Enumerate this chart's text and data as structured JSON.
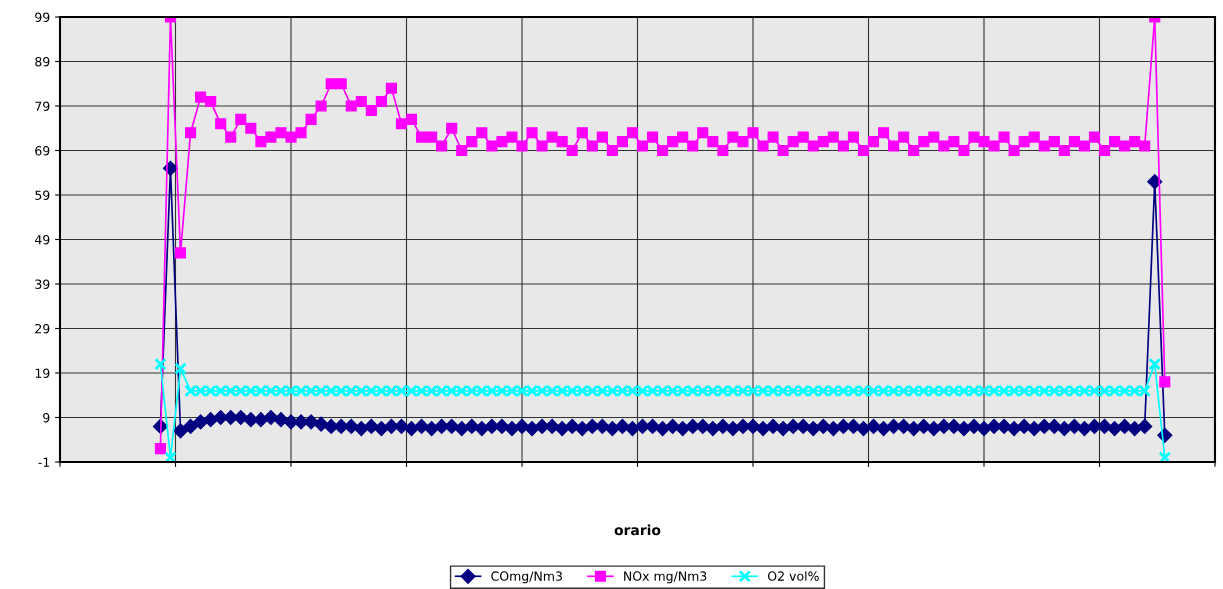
{
  "chart_data": {
    "type": "line",
    "xlabel": "orario",
    "categories": [
      null,
      null,
      null,
      null,
      null,
      null,
      null,
      null,
      null,
      null,
      null,
      null,
      null,
      null,
      null,
      null,
      null,
      null,
      null,
      null,
      null,
      null,
      null,
      null,
      null,
      null,
      null,
      null,
      null,
      null,
      null,
      null,
      null,
      null,
      null,
      null,
      null,
      null,
      null,
      null,
      null,
      null,
      null,
      null,
      null,
      null,
      null,
      null,
      null,
      null,
      null,
      null,
      null,
      null,
      null,
      null,
      null,
      null,
      null,
      null,
      null,
      null,
      null,
      null,
      null,
      null,
      null,
      null,
      null,
      null,
      null,
      null,
      null,
      null,
      null,
      null,
      null,
      null,
      null,
      null,
      null,
      null,
      null,
      null,
      null,
      null,
      null,
      null,
      null,
      null,
      null,
      null,
      null,
      null,
      null,
      null,
      null,
      null,
      null,
      null,
      null,
      null,
      null,
      null,
      null,
      null,
      null,
      null,
      null,
      null,
      null,
      null,
      null,
      null,
      null,
      null
    ],
    "series": [
      {
        "name": "COmg/Nm3",
        "color": "#000080",
        "marker": "diamond",
        "values": [
          null,
          null,
          null,
          null,
          null,
          null,
          null,
          null,
          null,
          null,
          7,
          65,
          6,
          7,
          8,
          8.5,
          9,
          9,
          9,
          8.5,
          8.5,
          9,
          8.5,
          8,
          8,
          8,
          7.5,
          7,
          7,
          7,
          6.5,
          7,
          6.5,
          7,
          7,
          6.5,
          7,
          6.5,
          7,
          7,
          6.5,
          7,
          6.5,
          7,
          7,
          6.5,
          7,
          6.5,
          7,
          7,
          6.5,
          7,
          6.5,
          7,
          7,
          6.5,
          7,
          6.5,
          7,
          7,
          6.5,
          7,
          6.5,
          7,
          7,
          6.5,
          7,
          6.5,
          7,
          7,
          6.5,
          7,
          6.5,
          7,
          7,
          6.5,
          7,
          6.5,
          7,
          7,
          6.5,
          7,
          6.5,
          7,
          7,
          6.5,
          7,
          6.5,
          7,
          7,
          6.5,
          7,
          6.5,
          7,
          7,
          6.5,
          7,
          6.5,
          7,
          7,
          6.5,
          7,
          6.5,
          7,
          7,
          6.5,
          7,
          6.5,
          7,
          62,
          5,
          null,
          null,
          null,
          null,
          null
        ]
      },
      {
        "name": "NOx mg/Nm3",
        "color": "#ff00ff",
        "marker": "square",
        "values": [
          null,
          null,
          null,
          null,
          null,
          null,
          null,
          null,
          null,
          null,
          2,
          99,
          46,
          73,
          81,
          80,
          75,
          72,
          76,
          74,
          71,
          72,
          73,
          72,
          73,
          76,
          79,
          84,
          84,
          79,
          80,
          78,
          80,
          83,
          75,
          76,
          72,
          72,
          70,
          74,
          69,
          71,
          73,
          70,
          71,
          72,
          70,
          73,
          70,
          72,
          71,
          69,
          73,
          70,
          72,
          69,
          71,
          73,
          70,
          72,
          69,
          71,
          72,
          70,
          73,
          71,
          69,
          72,
          71,
          73,
          70,
          72,
          69,
          71,
          72,
          70,
          71,
          72,
          70,
          72,
          69,
          71,
          73,
          70,
          72,
          69,
          71,
          72,
          70,
          71,
          69,
          72,
          71,
          70,
          72,
          69,
          71,
          72,
          70,
          71,
          69,
          71,
          70,
          72,
          69,
          71,
          70,
          71,
          70,
          99,
          17,
          null,
          null,
          null,
          null,
          null
        ]
      },
      {
        "name": "O2 vol%",
        "color": "#00ffff",
        "marker": "cross",
        "values": [
          null,
          null,
          null,
          null,
          null,
          null,
          null,
          null,
          null,
          null,
          21,
          0,
          20,
          15,
          15,
          15,
          15,
          15,
          15,
          15,
          15,
          15,
          15,
          15,
          15,
          15,
          15,
          15,
          15,
          15,
          15,
          15,
          15,
          15,
          15,
          15,
          15,
          15,
          15,
          15,
          15,
          15,
          15,
          15,
          15,
          15,
          15,
          15,
          15,
          15,
          15,
          15,
          15,
          15,
          15,
          15,
          15,
          15,
          15,
          15,
          15,
          15,
          15,
          15,
          15,
          15,
          15,
          15,
          15,
          15,
          15,
          15,
          15,
          15,
          15,
          15,
          15,
          15,
          15,
          15,
          15,
          15,
          15,
          15,
          15,
          15,
          15,
          15,
          15,
          15,
          15,
          15,
          15,
          15,
          15,
          15,
          15,
          15,
          15,
          15,
          15,
          15,
          15,
          15,
          15,
          15,
          15,
          15,
          15,
          21,
          0,
          null,
          null,
          null,
          null,
          null
        ]
      }
    ],
    "ylim": [
      -1,
      99
    ],
    "yticks": [
      -1,
      9,
      19,
      29,
      39,
      49,
      59,
      69,
      79,
      89,
      99
    ],
    "grid": true,
    "legend": "bottom",
    "line_style": "solid"
  }
}
